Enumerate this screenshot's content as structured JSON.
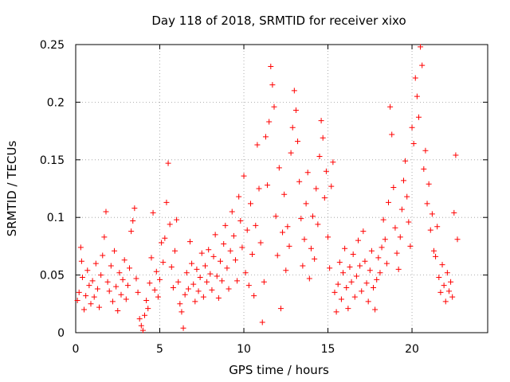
{
  "chart_data": {
    "type": "scatter",
    "title": "Day 118 of 2018, SRMTID for receiver xixo",
    "xlabel": "GPS time / hours",
    "ylabel": "SRMTID / TECUs",
    "xlim": [
      0,
      24.5
    ],
    "ylim": [
      0,
      0.25
    ],
    "x_ticks": [
      0,
      5,
      10,
      15,
      20
    ],
    "x_tick_labels": [
      "0",
      "5",
      "10",
      "15",
      "20"
    ],
    "y_ticks": [
      0,
      0.05,
      0.1,
      0.15,
      0.2,
      0.25
    ],
    "y_tick_labels": [
      "0",
      "0.05",
      "0.1",
      "0.15",
      "0.2",
      "0.25"
    ],
    "grid": true,
    "marker": "+",
    "color": "#ff0000",
    "series": [
      {
        "name": "SRMTID",
        "points": [
          [
            0.1,
            0.028
          ],
          [
            0.2,
            0.035
          ],
          [
            0.3,
            0.074
          ],
          [
            0.35,
            0.062
          ],
          [
            0.4,
            0.048
          ],
          [
            0.5,
            0.02
          ],
          [
            0.6,
            0.032
          ],
          [
            0.7,
            0.054
          ],
          [
            0.8,
            0.041
          ],
          [
            0.9,
            0.025
          ],
          [
            1.0,
            0.045
          ],
          [
            1.1,
            0.031
          ],
          [
            1.2,
            0.06
          ],
          [
            1.3,
            0.038
          ],
          [
            1.4,
            0.022
          ],
          [
            1.5,
            0.05
          ],
          [
            1.6,
            0.067
          ],
          [
            1.7,
            0.083
          ],
          [
            1.8,
            0.105
          ],
          [
            1.9,
            0.044
          ],
          [
            2.0,
            0.036
          ],
          [
            2.1,
            0.058
          ],
          [
            2.2,
            0.027
          ],
          [
            2.3,
            0.071
          ],
          [
            2.4,
            0.04
          ],
          [
            2.5,
            0.019
          ],
          [
            2.6,
            0.052
          ],
          [
            2.7,
            0.033
          ],
          [
            2.8,
            0.046
          ],
          [
            2.9,
            0.063
          ],
          [
            3.0,
            0.029
          ],
          [
            3.1,
            0.041
          ],
          [
            3.2,
            0.056
          ],
          [
            3.3,
            0.088
          ],
          [
            3.4,
            0.097
          ],
          [
            3.5,
            0.108
          ],
          [
            3.6,
            0.047
          ],
          [
            3.7,
            0.035
          ],
          [
            3.8,
            0.012
          ],
          [
            3.9,
            0.006
          ],
          [
            4.0,
            0.002
          ],
          [
            4.1,
            0.015
          ],
          [
            4.2,
            0.028
          ],
          [
            4.3,
            0.021
          ],
          [
            4.4,
            0.043
          ],
          [
            4.5,
            0.065
          ],
          [
            4.6,
            0.104
          ],
          [
            4.7,
            0.037
          ],
          [
            4.8,
            0.053
          ],
          [
            4.9,
            0.031
          ],
          [
            5.0,
            0.046
          ],
          [
            5.1,
            0.078
          ],
          [
            5.2,
            0.061
          ],
          [
            5.3,
            0.082
          ],
          [
            5.4,
            0.113
          ],
          [
            5.5,
            0.147
          ],
          [
            5.6,
            0.094
          ],
          [
            5.7,
            0.057
          ],
          [
            5.8,
            0.039
          ],
          [
            5.9,
            0.071
          ],
          [
            6.0,
            0.098
          ],
          [
            6.1,
            0.044
          ],
          [
            6.2,
            0.025
          ],
          [
            6.3,
            0.018
          ],
          [
            6.4,
            0.004
          ],
          [
            6.5,
            0.033
          ],
          [
            6.6,
            0.052
          ],
          [
            6.7,
            0.038
          ],
          [
            6.8,
            0.079
          ],
          [
            6.9,
            0.06
          ],
          [
            7.0,
            0.042
          ],
          [
            7.1,
            0.027
          ],
          [
            7.2,
            0.055
          ],
          [
            7.3,
            0.036
          ],
          [
            7.4,
            0.048
          ],
          [
            7.5,
            0.069
          ],
          [
            7.6,
            0.031
          ],
          [
            7.7,
            0.058
          ],
          [
            7.8,
            0.044
          ],
          [
            7.9,
            0.072
          ],
          [
            8.0,
            0.051
          ],
          [
            8.1,
            0.037
          ],
          [
            8.2,
            0.066
          ],
          [
            8.3,
            0.085
          ],
          [
            8.4,
            0.049
          ],
          [
            8.5,
            0.03
          ],
          [
            8.6,
            0.062
          ],
          [
            8.7,
            0.045
          ],
          [
            8.8,
            0.077
          ],
          [
            8.9,
            0.093
          ],
          [
            9.0,
            0.056
          ],
          [
            9.1,
            0.038
          ],
          [
            9.2,
            0.071
          ],
          [
            9.3,
            0.105
          ],
          [
            9.4,
            0.084
          ],
          [
            9.5,
            0.063
          ],
          [
            9.6,
            0.045
          ],
          [
            9.7,
            0.118
          ],
          [
            9.8,
            0.097
          ],
          [
            9.9,
            0.074
          ],
          [
            10.0,
            0.136
          ],
          [
            10.1,
            0.052
          ],
          [
            10.2,
            0.089
          ],
          [
            10.3,
            0.041
          ],
          [
            10.4,
            0.112
          ],
          [
            10.5,
            0.068
          ],
          [
            10.6,
            0.032
          ],
          [
            10.7,
            0.093
          ],
          [
            10.8,
            0.163
          ],
          [
            10.9,
            0.125
          ],
          [
            11.0,
            0.078
          ],
          [
            11.1,
            0.009
          ],
          [
            11.2,
            0.044
          ],
          [
            11.3,
            0.17
          ],
          [
            11.4,
            0.128
          ],
          [
            11.5,
            0.183
          ],
          [
            11.6,
            0.231
          ],
          [
            11.7,
            0.215
          ],
          [
            11.8,
            0.196
          ],
          [
            11.9,
            0.101
          ],
          [
            12.0,
            0.067
          ],
          [
            12.1,
            0.143
          ],
          [
            12.2,
            0.021
          ],
          [
            12.3,
            0.087
          ],
          [
            12.4,
            0.12
          ],
          [
            12.5,
            0.054
          ],
          [
            12.6,
            0.092
          ],
          [
            12.7,
            0.075
          ],
          [
            12.8,
            0.156
          ],
          [
            12.9,
            0.178
          ],
          [
            13.0,
            0.21
          ],
          [
            13.1,
            0.193
          ],
          [
            13.2,
            0.166
          ],
          [
            13.3,
            0.131
          ],
          [
            13.4,
            0.099
          ],
          [
            13.5,
            0.058
          ],
          [
            13.6,
            0.081
          ],
          [
            13.7,
            0.112
          ],
          [
            13.8,
            0.139
          ],
          [
            13.9,
            0.047
          ],
          [
            14.0,
            0.073
          ],
          [
            14.1,
            0.101
          ],
          [
            14.2,
            0.064
          ],
          [
            14.3,
            0.125
          ],
          [
            14.4,
            0.094
          ],
          [
            14.5,
            0.153
          ],
          [
            14.6,
            0.184
          ],
          [
            14.7,
            0.169
          ],
          [
            14.8,
            0.117
          ],
          [
            14.9,
            0.14
          ],
          [
            15.0,
            0.083
          ],
          [
            15.1,
            0.056
          ],
          [
            15.2,
            0.127
          ],
          [
            15.3,
            0.148
          ],
          [
            15.4,
            0.035
          ],
          [
            15.5,
            0.018
          ],
          [
            15.6,
            0.042
          ],
          [
            15.7,
            0.061
          ],
          [
            15.8,
            0.029
          ],
          [
            15.9,
            0.052
          ],
          [
            16.0,
            0.073
          ],
          [
            16.1,
            0.039
          ],
          [
            16.2,
            0.021
          ],
          [
            16.3,
            0.057
          ],
          [
            16.4,
            0.044
          ],
          [
            16.5,
            0.068
          ],
          [
            16.6,
            0.031
          ],
          [
            16.7,
            0.049
          ],
          [
            16.8,
            0.08
          ],
          [
            16.9,
            0.058
          ],
          [
            17.0,
            0.036
          ],
          [
            17.1,
            0.088
          ],
          [
            17.2,
            0.062
          ],
          [
            17.3,
            0.043
          ],
          [
            17.4,
            0.027
          ],
          [
            17.5,
            0.054
          ],
          [
            17.6,
            0.071
          ],
          [
            17.7,
            0.039
          ],
          [
            17.8,
            0.02
          ],
          [
            17.9,
            0.046
          ],
          [
            18.0,
            0.065
          ],
          [
            18.1,
            0.052
          ],
          [
            18.2,
            0.074
          ],
          [
            18.3,
            0.098
          ],
          [
            18.4,
            0.081
          ],
          [
            18.5,
            0.06
          ],
          [
            18.6,
            0.113
          ],
          [
            18.7,
            0.196
          ],
          [
            18.8,
            0.172
          ],
          [
            18.9,
            0.126
          ],
          [
            19.0,
            0.091
          ],
          [
            19.1,
            0.069
          ],
          [
            19.2,
            0.055
          ],
          [
            19.3,
            0.083
          ],
          [
            19.4,
            0.107
          ],
          [
            19.5,
            0.132
          ],
          [
            19.6,
            0.149
          ],
          [
            19.7,
            0.118
          ],
          [
            19.8,
            0.096
          ],
          [
            19.9,
            0.075
          ],
          [
            20.0,
            0.178
          ],
          [
            20.1,
            0.164
          ],
          [
            20.2,
            0.221
          ],
          [
            20.3,
            0.205
          ],
          [
            20.4,
            0.187
          ],
          [
            20.5,
            0.248
          ],
          [
            20.6,
            0.232
          ],
          [
            20.7,
            0.142
          ],
          [
            20.8,
            0.158
          ],
          [
            20.9,
            0.112
          ],
          [
            21.0,
            0.129
          ],
          [
            21.1,
            0.089
          ],
          [
            21.2,
            0.103
          ],
          [
            21.3,
            0.071
          ],
          [
            21.4,
            0.066
          ],
          [
            21.5,
            0.092
          ],
          [
            21.6,
            0.048
          ],
          [
            21.7,
            0.035
          ],
          [
            21.8,
            0.059
          ],
          [
            21.9,
            0.041
          ],
          [
            22.0,
            0.027
          ],
          [
            22.1,
            0.052
          ],
          [
            22.2,
            0.036
          ],
          [
            22.3,
            0.044
          ],
          [
            22.4,
            0.031
          ],
          [
            22.5,
            0.104
          ],
          [
            22.6,
            0.154
          ],
          [
            22.7,
            0.081
          ]
        ]
      }
    ]
  }
}
